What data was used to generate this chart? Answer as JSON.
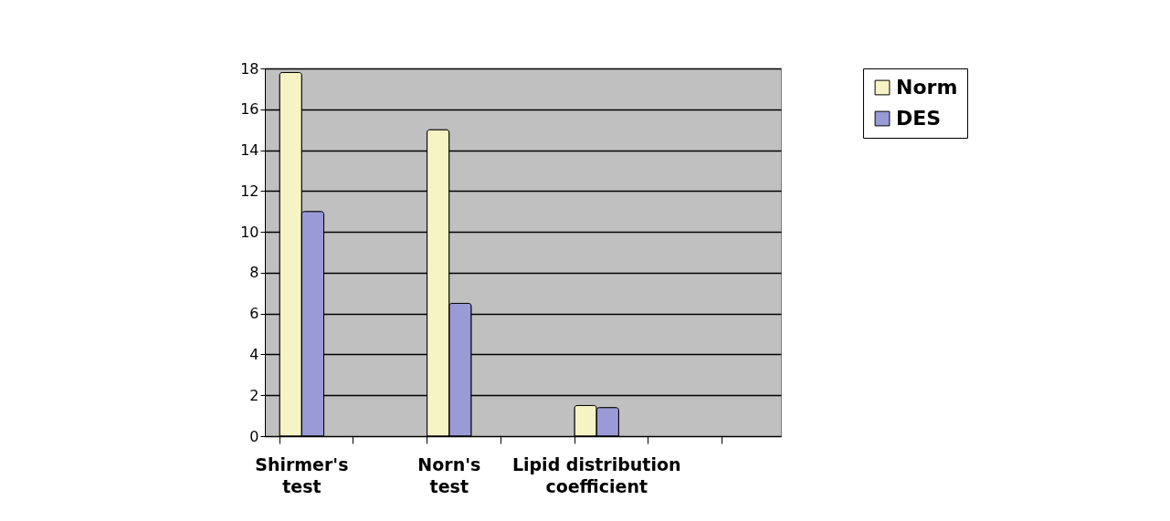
{
  "chart_data": {
    "type": "bar",
    "categories": [
      "Shirmer's test",
      null,
      "Norn's test",
      null,
      "Lipid distribution coefficient",
      null,
      null
    ],
    "series": [
      {
        "name": "Norm",
        "color": "#f6f4c4",
        "values": [
          17.8,
          null,
          15,
          null,
          1.5,
          null,
          null
        ]
      },
      {
        "name": "DES",
        "color": "#9a9ad6",
        "values": [
          11,
          null,
          6.5,
          null,
          1.4,
          null,
          null
        ]
      }
    ],
    "ylim": [
      0,
      18
    ],
    "yticks": [
      0,
      2,
      4,
      6,
      8,
      10,
      12,
      14,
      16,
      18
    ],
    "grid": "y",
    "legend": "right"
  }
}
